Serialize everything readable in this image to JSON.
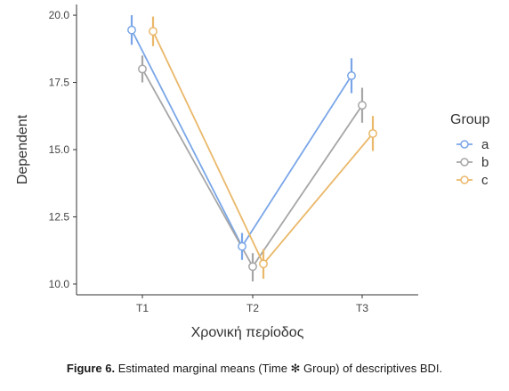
{
  "chart_data": {
    "type": "line",
    "xlabel": "Χρονική περίοδος",
    "ylabel": "Dependent",
    "categories": [
      "T1",
      "T2",
      "T3"
    ],
    "ylim": [
      9.6,
      20.4
    ],
    "yticks": [
      10.0,
      12.5,
      15.0,
      17.5,
      20.0
    ],
    "ytick_labels": [
      "10.0",
      "12.5",
      "15.0",
      "17.5",
      "20.0"
    ],
    "grid": false,
    "legend": {
      "title": "Group",
      "placement": "right"
    },
    "series": [
      {
        "name": "a",
        "color": "#7aa6e8",
        "values": [
          19.45,
          11.4,
          17.75
        ],
        "err_low": [
          18.9,
          10.9,
          17.1
        ],
        "err_high": [
          20.0,
          11.9,
          18.4
        ]
      },
      {
        "name": "b",
        "color": "#a6a6a6",
        "values": [
          18.0,
          10.65,
          16.65
        ],
        "err_low": [
          17.5,
          10.1,
          16.0
        ],
        "err_high": [
          18.5,
          11.15,
          17.3
        ]
      },
      {
        "name": "c",
        "color": "#eab86a",
        "values": [
          19.4,
          10.75,
          15.6
        ],
        "err_low": [
          18.85,
          10.2,
          14.95
        ],
        "err_high": [
          19.95,
          11.3,
          16.25
        ]
      }
    ]
  },
  "caption": {
    "label": "Figure 6.",
    "text": " Estimated marginal means (Time ✻ Group) of descriptives BDI."
  }
}
